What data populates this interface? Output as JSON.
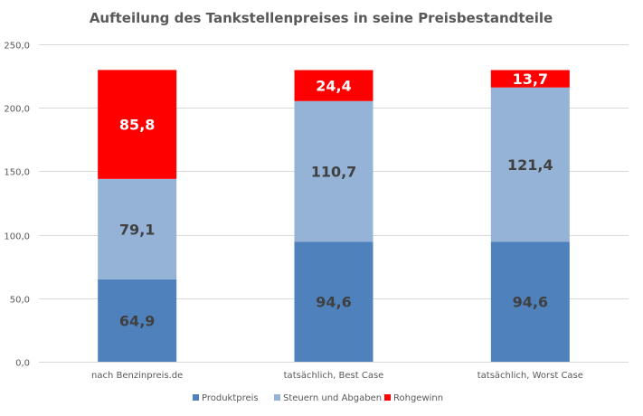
{
  "chart_data": {
    "type": "bar",
    "stacked": true,
    "title": "Aufteilung des Tankstellenpreises in seine Preisbestandteile",
    "xlabel": "",
    "ylabel": "",
    "ylim": [
      0,
      250
    ],
    "yticks": [
      0,
      50,
      100,
      150,
      200,
      250
    ],
    "ytick_labels": [
      "0,0",
      "50,0",
      "100,0",
      "150,0",
      "200,0",
      "250,0"
    ],
    "grid": true,
    "legend_position": "bottom",
    "categories": [
      "nach Benzinpreis.de",
      "tatsächlich, Best Case",
      "tatsächlich, Worst Case"
    ],
    "series": [
      {
        "name": "Produktpreis",
        "color": "#4F81BD",
        "label_color": "#404040",
        "values": [
          64.9,
          94.6,
          94.6
        ],
        "labels": [
          "64,9",
          "94,6",
          "94,6"
        ]
      },
      {
        "name": "Steuern und Abgaben",
        "color": "#95B3D7",
        "label_color": "#404040",
        "values": [
          79.1,
          110.7,
          121.4
        ],
        "labels": [
          "79,1",
          "110,7",
          "121,4"
        ]
      },
      {
        "name": "Rohgewinn",
        "color": "#FF0000",
        "label_color": "#FFFFFF",
        "values": [
          85.8,
          24.4,
          13.7
        ],
        "labels": [
          "85,8",
          "24,4",
          "13,7"
        ]
      }
    ]
  }
}
